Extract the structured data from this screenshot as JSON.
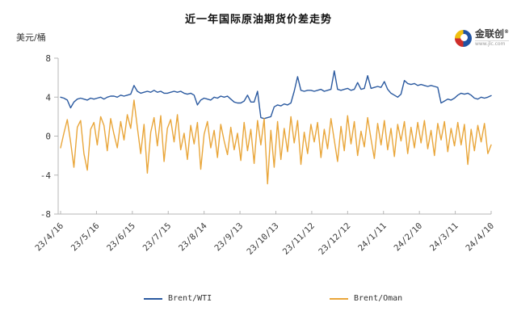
{
  "header": {
    "title": "近一年国际原油期货价差走势",
    "unit_label": "美元/桶"
  },
  "logo": {
    "brand": "金联创",
    "reg_mark": "®",
    "site": "www.jlc.com",
    "colors": {
      "blue": "#2053a3",
      "red": "#cf2e2a",
      "yellow": "#f0c010"
    }
  },
  "chart_data": {
    "type": "line",
    "title": "近一年国际原油期货价差走势",
    "ylabel": "美元/桶",
    "xlabel": "",
    "ylim": [
      -8,
      8
    ],
    "yticks": [
      8,
      4,
      0,
      -4,
      -8
    ],
    "grid": false,
    "legend_position": "bottom",
    "x_tick_labels": [
      "23/4/16",
      "23/5/16",
      "23/6/15",
      "23/7/15",
      "23/8/14",
      "23/9/13",
      "23/10/13",
      "23/11/12",
      "23/12/12",
      "24/1/11",
      "24/2/10",
      "24/3/11",
      "24/4/10"
    ],
    "axis_color": "#b7b7b7",
    "series": [
      {
        "name": "Brent/WTI",
        "color": "#2b5aa0",
        "values": [
          4.0,
          3.9,
          3.7,
          2.9,
          3.5,
          3.8,
          3.9,
          3.8,
          3.7,
          3.9,
          3.8,
          3.9,
          4.0,
          3.8,
          4.0,
          4.1,
          4.1,
          4.0,
          4.2,
          4.1,
          4.2,
          4.3,
          5.2,
          4.6,
          4.4,
          4.5,
          4.6,
          4.5,
          4.7,
          4.5,
          4.6,
          4.4,
          4.4,
          4.5,
          4.6,
          4.5,
          4.6,
          4.4,
          4.3,
          4.4,
          4.2,
          3.2,
          3.7,
          3.9,
          3.8,
          3.7,
          4.0,
          3.9,
          4.1,
          4.0,
          4.1,
          3.8,
          3.5,
          3.4,
          3.4,
          3.6,
          4.2,
          3.5,
          3.5,
          4.6,
          1.9,
          1.8,
          1.9,
          2.0,
          3.0,
          3.2,
          3.1,
          3.3,
          3.2,
          3.4,
          4.6,
          6.1,
          4.7,
          4.6,
          4.7,
          4.7,
          4.6,
          4.7,
          4.8,
          4.6,
          4.7,
          4.8,
          6.7,
          4.8,
          4.7,
          4.8,
          4.9,
          4.7,
          4.8,
          5.5,
          4.8,
          4.9,
          6.2,
          4.9,
          5.0,
          5.1,
          5.0,
          5.6,
          4.8,
          4.4,
          4.2,
          4.0,
          4.3,
          5.7,
          5.4,
          5.3,
          5.4,
          5.2,
          5.3,
          5.2,
          5.1,
          5.2,
          5.1,
          5.0,
          3.4,
          3.6,
          3.8,
          3.7,
          3.9,
          4.2,
          4.4,
          4.3,
          4.4,
          4.2,
          3.9,
          3.8,
          4.0,
          3.9,
          4.0,
          4.15
        ]
      },
      {
        "name": "Brent/Oman",
        "color": "#e9a63a",
        "values": [
          -1.2,
          0.3,
          1.7,
          -0.6,
          -3.2,
          0.9,
          1.6,
          -1.8,
          -3.5,
          0.7,
          1.4,
          -0.9,
          2.0,
          1.1,
          -1.5,
          1.8,
          0.2,
          -1.2,
          1.5,
          -0.4,
          2.2,
          0.8,
          3.7,
          0.9,
          -1.8,
          1.2,
          -3.8,
          0.4,
          1.9,
          -1.0,
          2.1,
          -2.6,
          0.8,
          1.7,
          -0.6,
          2.2,
          -1.4,
          0.3,
          -2.4,
          1.1,
          -0.8,
          1.4,
          -3.4,
          0.2,
          1.5,
          -1.2,
          0.6,
          -2.2,
          1.2,
          -0.5,
          -1.9,
          0.9,
          -1.4,
          0.3,
          -2.5,
          1.4,
          -1.5,
          0.7,
          -2.8,
          1.6,
          -0.9,
          1.8,
          -4.9,
          0.6,
          -3.2,
          1.5,
          -2.4,
          0.8,
          -1.6,
          2.0,
          -0.7,
          1.6,
          -2.9,
          0.4,
          -1.8,
          1.2,
          -0.6,
          1.4,
          -2.2,
          0.7,
          -1.3,
          1.8,
          -0.4,
          -2.6,
          1.0,
          -1.5,
          2.1,
          -0.8,
          1.5,
          -2.0,
          0.5,
          -1.1,
          1.9,
          -0.3,
          -2.3,
          1.3,
          -0.9,
          1.6,
          -1.4,
          0.8,
          -2.1,
          1.2,
          -0.5,
          1.5,
          -1.8,
          0.9,
          -1.2,
          1.4,
          -0.7,
          1.6,
          -1.3,
          0.6,
          -2.0,
          1.3,
          -0.4,
          1.5,
          -1.6,
          0.8,
          -1.0,
          1.4,
          -0.9,
          1.2,
          -2.9,
          0.7,
          -1.5,
          1.1,
          -0.6,
          1.3,
          -1.8,
          -0.9
        ]
      }
    ]
  }
}
